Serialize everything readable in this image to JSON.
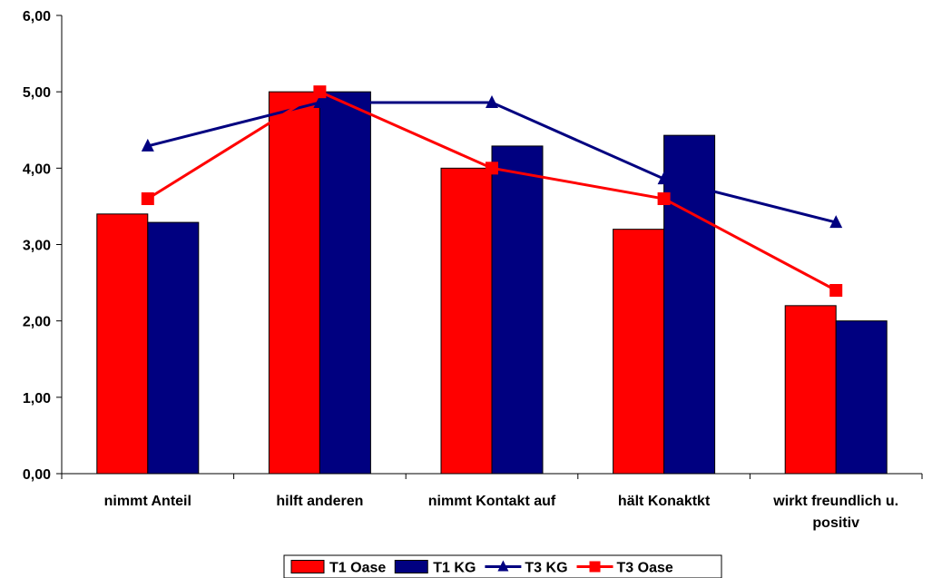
{
  "chart_data": {
    "type": "bar",
    "categories": [
      [
        "nimmt Anteil"
      ],
      [
        "hilft anderen"
      ],
      [
        "nimmt Kontakt auf"
      ],
      [
        "hält Konaktkt"
      ],
      [
        "wirkt freundlich u.",
        "positiv"
      ]
    ],
    "ylim": [
      0,
      6
    ],
    "yticks": [
      "0,00",
      "1,00",
      "2,00",
      "3,00",
      "4,00",
      "5,00",
      "6,00"
    ],
    "grid": false,
    "legend_position": "bottom",
    "series": [
      {
        "name": "T1 Oase",
        "kind": "bar",
        "color": "#ff0000",
        "values": [
          3.4,
          5.0,
          4.0,
          3.2,
          2.2
        ]
      },
      {
        "name": "T1 KG",
        "kind": "bar",
        "color": "#000080",
        "values": [
          3.29,
          5.0,
          4.29,
          4.43,
          2.0
        ]
      },
      {
        "name": "T3 KG",
        "kind": "line",
        "marker": "triangle",
        "color": "#000080",
        "values": [
          4.29,
          4.86,
          4.86,
          3.86,
          3.29
        ]
      },
      {
        "name": "T3 Oase",
        "kind": "line",
        "marker": "square",
        "color": "#ff0000",
        "values": [
          3.6,
          5.0,
          4.0,
          3.6,
          2.4
        ]
      }
    ]
  }
}
